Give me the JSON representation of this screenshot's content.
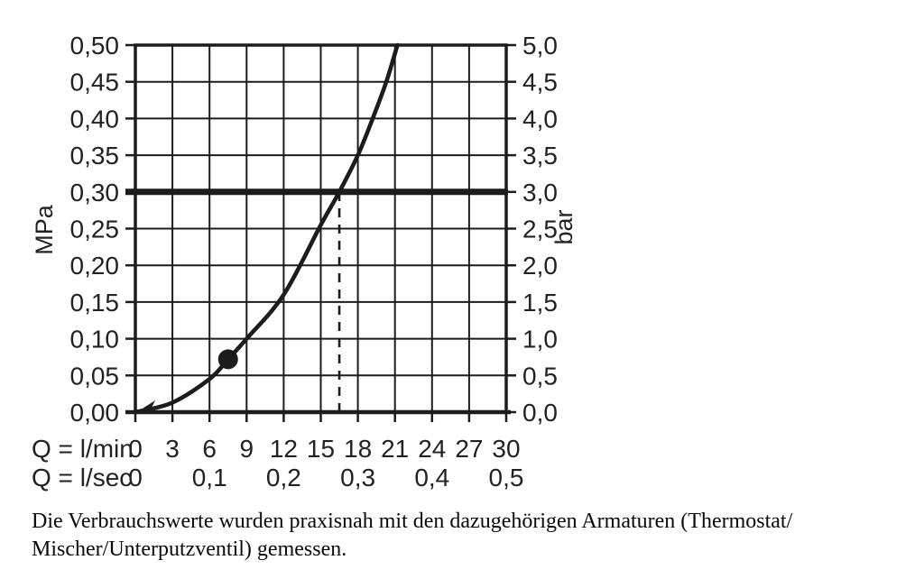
{
  "page": {
    "background": "#ffffff",
    "ink_color": "#1c1c1e",
    "text_color": "#0a0a0a"
  },
  "chart_data": {
    "type": "line",
    "title": "",
    "grid": true,
    "line_color": "#1c1c1e",
    "x_axis": {
      "row1_label": "Q = l/min",
      "row1_ticks": [
        "0",
        "3",
        "6",
        "9",
        "12",
        "15",
        "18",
        "21",
        "24",
        "27",
        "30"
      ],
      "row2_label": "Q = l/sec",
      "row2_ticks": [
        "0",
        "0,1",
        "0,2",
        "0,3",
        "0,4",
        "0,5"
      ],
      "range_lmin": [
        0,
        30
      ],
      "gridline_step_lmin": 3
    },
    "y_axis_left": {
      "unit": "MPa",
      "ticks": [
        "0,00",
        "0,05",
        "0,10",
        "0,15",
        "0,20",
        "0,25",
        "0,30",
        "0,35",
        "0,40",
        "0,45",
        "0,50"
      ],
      "range_mpa": [
        0,
        0.5
      ],
      "gridline_step_mpa": 0.05
    },
    "y_axis_right": {
      "unit": "bar",
      "ticks": [
        "0,0",
        "0,5",
        "1,0",
        "1,5",
        "2,0",
        "2,5",
        "3,0",
        "3,5",
        "4,0",
        "4,5",
        "5,0"
      ],
      "range_bar": [
        0,
        5
      ]
    },
    "series": [
      {
        "name": "flow-pressure-curve",
        "points_q_lmin_p_mpa": [
          [
            0,
            0
          ],
          [
            3,
            0.013
          ],
          [
            6,
            0.045
          ],
          [
            7.5,
            0.072
          ],
          [
            9,
            0.1
          ],
          [
            12,
            0.16
          ],
          [
            15,
            0.255
          ],
          [
            16.5,
            0.3
          ],
          [
            18,
            0.35
          ],
          [
            19.2,
            0.4
          ],
          [
            20.3,
            0.45
          ],
          [
            21.2,
            0.5
          ]
        ]
      }
    ],
    "reference_line_p_mpa": 0.3,
    "dashed_line_q_lmin": 16.5,
    "marker_point": {
      "q_lmin": 7.5,
      "p_mpa": 0.072
    }
  },
  "caption": {
    "line1": "Die Verbrauchswerte wurden praxisnah mit den dazugehörigen Armaturen (Thermostat/",
    "line2": "Mischer/Unterputzventil) gemessen."
  }
}
